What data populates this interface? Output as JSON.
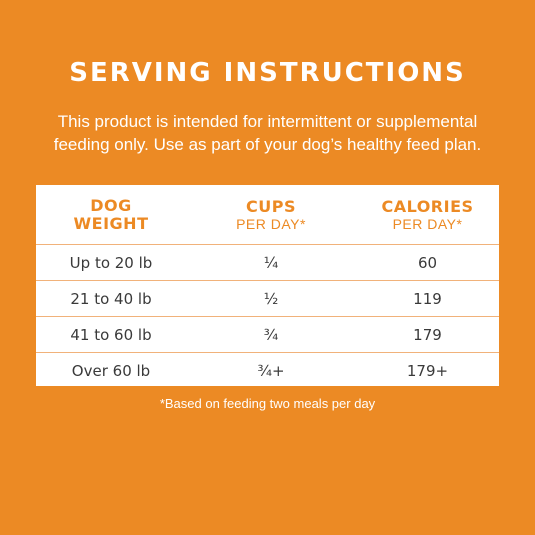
{
  "title": "SERVING INSTRUCTIONS",
  "intro": {
    "line1": "This product is intended for intermittent or supplemental",
    "line2": "feeding only. Use as part of your dog’s healthy feed plan."
  },
  "table": {
    "headers": [
      {
        "main1": "DOG",
        "main2": "WEIGHT",
        "sub": ""
      },
      {
        "main1": "CUPS",
        "main2": "",
        "sub": "PER DAY*"
      },
      {
        "main1": "CALORIES",
        "main2": "",
        "sub": "PER DAY*"
      }
    ],
    "rows": [
      {
        "weight": "Up to 20 lb",
        "cups": "¼",
        "calories": "60"
      },
      {
        "weight": "21 to 40 lb",
        "cups": "½",
        "calories": "119"
      },
      {
        "weight": "41 to 60 lb",
        "cups": "¾",
        "calories": "179"
      },
      {
        "weight": "Over 60 lb",
        "cups": "¾+",
        "calories": "179+"
      }
    ]
  },
  "footnote": "*Based on feeding two meals per day",
  "colors": {
    "background": "#ec8a24",
    "accent": "#ec8a24",
    "card": "#ffffff",
    "text": "#3a3a3a"
  }
}
